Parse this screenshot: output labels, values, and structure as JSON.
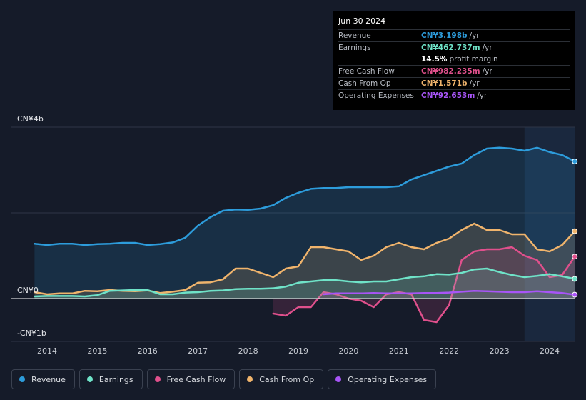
{
  "tooltip": {
    "date": "Jun 30 2024",
    "rows": [
      {
        "label": "Revenue",
        "value": "CN¥3.198b",
        "unit": "/yr",
        "color": "#2d9cdb"
      },
      {
        "label": "Earnings",
        "value": "CN¥462.737m",
        "unit": "/yr",
        "color": "#6fe3c8"
      },
      {
        "label": "",
        "value": "14.5%",
        "unit": "profit margin",
        "color": "#ffffff"
      },
      {
        "label": "Free Cash Flow",
        "value": "CN¥982.235m",
        "unit": "/yr",
        "color": "#e0508c"
      },
      {
        "label": "Cash From Op",
        "value": "CN¥1.571b",
        "unit": "/yr",
        "color": "#f0b46c"
      },
      {
        "label": "Operating Expenses",
        "value": "CN¥92.653m",
        "unit": "/yr",
        "color": "#a855f7"
      }
    ]
  },
  "legend": [
    {
      "label": "Revenue",
      "color": "#2d9cdb"
    },
    {
      "label": "Earnings",
      "color": "#6fe3c8"
    },
    {
      "label": "Free Cash Flow",
      "color": "#e0508c"
    },
    {
      "label": "Cash From Op",
      "color": "#f0b46c"
    },
    {
      "label": "Operating Expenses",
      "color": "#a855f7"
    }
  ],
  "chart_data": {
    "type": "area",
    "y_tick_labels": [
      "CN¥4b",
      "CN¥0",
      "-CN¥1b"
    ],
    "x_tick_labels": [
      "2014",
      "2015",
      "2016",
      "2017",
      "2018",
      "2019",
      "2020",
      "2021",
      "2022",
      "2023",
      "2024"
    ],
    "x_ticks": [
      2014,
      2015,
      2016,
      2017,
      2018,
      2019,
      2020,
      2021,
      2022,
      2023,
      2024
    ],
    "xlim": [
      2013.3,
      2024.5
    ],
    "ylim": [
      -1.0,
      4.0
    ],
    "units": "CN¥ billions",
    "forecast_start": 2023.5,
    "series": [
      {
        "name": "Revenue",
        "color": "#2d9cdb",
        "fill": true,
        "x": [
          2013.75,
          2014.0,
          2014.25,
          2014.5,
          2014.75,
          2015.0,
          2015.25,
          2015.5,
          2015.75,
          2016.0,
          2016.25,
          2016.5,
          2016.75,
          2017.0,
          2017.25,
          2017.5,
          2017.75,
          2018.0,
          2018.25,
          2018.5,
          2018.75,
          2019.0,
          2019.25,
          2019.5,
          2019.75,
          2020.0,
          2020.25,
          2020.5,
          2020.75,
          2021.0,
          2021.25,
          2021.5,
          2021.75,
          2022.0,
          2022.25,
          2022.5,
          2022.75,
          2023.0,
          2023.25,
          2023.5,
          2023.75,
          2024.0,
          2024.25,
          2024.5
        ],
        "y": [
          1.28,
          1.25,
          1.28,
          1.28,
          1.25,
          1.27,
          1.28,
          1.3,
          1.3,
          1.25,
          1.27,
          1.31,
          1.42,
          1.7,
          1.9,
          2.05,
          2.08,
          2.07,
          2.1,
          2.18,
          2.35,
          2.47,
          2.56,
          2.58,
          2.58,
          2.6,
          2.6,
          2.6,
          2.6,
          2.62,
          2.78,
          2.88,
          2.98,
          3.08,
          3.15,
          3.35,
          3.5,
          3.52,
          3.5,
          3.45,
          3.52,
          3.42,
          3.35,
          3.2
        ]
      },
      {
        "name": "Cash From Op",
        "color": "#f0b46c",
        "fill": true,
        "x": [
          2013.75,
          2014.0,
          2014.25,
          2014.5,
          2014.75,
          2015.0,
          2015.25,
          2015.5,
          2015.75,
          2016.0,
          2016.25,
          2016.5,
          2016.75,
          2017.0,
          2017.25,
          2017.5,
          2017.75,
          2018.0,
          2018.25,
          2018.5,
          2018.75,
          2019.0,
          2019.25,
          2019.5,
          2019.75,
          2020.0,
          2020.25,
          2020.5,
          2020.75,
          2021.0,
          2021.25,
          2021.5,
          2021.75,
          2022.0,
          2022.25,
          2022.5,
          2022.75,
          2023.0,
          2023.25,
          2023.5,
          2023.75,
          2024.0,
          2024.25,
          2024.5
        ],
        "y": [
          0.15,
          0.1,
          0.12,
          0.12,
          0.18,
          0.17,
          0.2,
          0.18,
          0.17,
          0.19,
          0.13,
          0.16,
          0.2,
          0.37,
          0.38,
          0.45,
          0.7,
          0.7,
          0.6,
          0.5,
          0.7,
          0.75,
          1.2,
          1.2,
          1.15,
          1.1,
          0.9,
          1.0,
          1.2,
          1.3,
          1.2,
          1.15,
          1.3,
          1.4,
          1.6,
          1.75,
          1.6,
          1.6,
          1.5,
          1.5,
          1.15,
          1.1,
          1.25,
          1.57
        ]
      },
      {
        "name": "Free Cash Flow",
        "color": "#e0508c",
        "fill": true,
        "x": [
          2018.5,
          2018.75,
          2019.0,
          2019.25,
          2019.5,
          2019.75,
          2020.0,
          2020.25,
          2020.5,
          2020.75,
          2021.0,
          2021.25,
          2021.5,
          2021.75,
          2022.0,
          2022.25,
          2022.5,
          2022.75,
          2023.0,
          2023.25,
          2023.5,
          2023.75,
          2024.0,
          2024.25,
          2024.5
        ],
        "y": [
          -0.35,
          -0.4,
          -0.2,
          -0.2,
          0.15,
          0.1,
          0.0,
          -0.05,
          -0.2,
          0.1,
          0.15,
          0.1,
          -0.5,
          -0.55,
          -0.15,
          0.9,
          1.1,
          1.15,
          1.15,
          1.2,
          1.0,
          0.9,
          0.5,
          0.55,
          0.98
        ]
      },
      {
        "name": "Earnings",
        "color": "#6fe3c8",
        "fill": true,
        "x": [
          2013.75,
          2014.0,
          2014.25,
          2014.5,
          2014.75,
          2015.0,
          2015.25,
          2015.5,
          2015.75,
          2016.0,
          2016.25,
          2016.5,
          2016.75,
          2017.0,
          2017.25,
          2017.5,
          2017.75,
          2018.0,
          2018.25,
          2018.5,
          2018.75,
          2019.0,
          2019.25,
          2019.5,
          2019.75,
          2020.0,
          2020.25,
          2020.5,
          2020.75,
          2021.0,
          2021.25,
          2021.5,
          2021.75,
          2022.0,
          2022.25,
          2022.5,
          2022.75,
          2023.0,
          2023.25,
          2023.5,
          2023.75,
          2024.0,
          2024.25,
          2024.5
        ],
        "y": [
          0.05,
          0.06,
          0.06,
          0.06,
          0.05,
          0.08,
          0.18,
          0.19,
          0.2,
          0.2,
          0.1,
          0.1,
          0.14,
          0.15,
          0.18,
          0.19,
          0.22,
          0.23,
          0.23,
          0.24,
          0.28,
          0.37,
          0.4,
          0.43,
          0.43,
          0.4,
          0.38,
          0.4,
          0.4,
          0.45,
          0.5,
          0.52,
          0.57,
          0.56,
          0.6,
          0.68,
          0.7,
          0.62,
          0.55,
          0.5,
          0.53,
          0.57,
          0.52,
          0.46
        ]
      },
      {
        "name": "Operating Expenses",
        "color": "#a855f7",
        "fill": false,
        "x": [
          2019.5,
          2019.75,
          2020.0,
          2020.25,
          2020.5,
          2020.75,
          2021.0,
          2021.25,
          2021.5,
          2021.75,
          2022.0,
          2022.25,
          2022.5,
          2022.75,
          2023.0,
          2023.25,
          2023.5,
          2023.75,
          2024.0,
          2024.25,
          2024.5
        ],
        "y": [
          0.1,
          0.12,
          0.12,
          0.12,
          0.13,
          0.12,
          0.12,
          0.12,
          0.13,
          0.13,
          0.14,
          0.16,
          0.18,
          0.17,
          0.16,
          0.15,
          0.15,
          0.17,
          0.15,
          0.13,
          0.09
        ]
      }
    ]
  }
}
